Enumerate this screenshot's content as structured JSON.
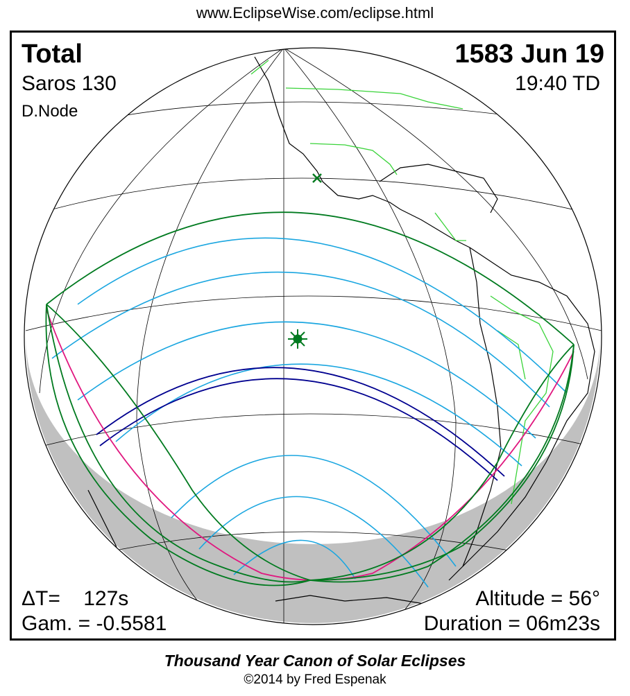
{
  "header": {
    "url": "www.EclipseWise.com/eclipse.html"
  },
  "eclipse": {
    "type": "Total",
    "date": "1583 Jun 19",
    "saros": "Saros 130",
    "time": "19:40 TD",
    "node": "D.Node",
    "delta_t": "ΔT=    127s",
    "gamma": "Gam. = -0.5581",
    "altitude": "Altitude = 56°",
    "duration": "Duration = 06m23s",
    "greatest_eclipse_marker": "star",
    "subsolar_marker": "x"
  },
  "footer": {
    "canon": "Thousand Year Canon of Solar Eclipses",
    "copyright": "©2014 by Fred Espenak"
  },
  "colors": {
    "penumbra_limits": "#007a1f",
    "contour_lines": "#1aa6e0",
    "umbra_path": "#00008f",
    "rise_set_curve": "#e0177f",
    "borders": "#39d339",
    "coastline": "#000000",
    "graticule": "#000000",
    "night_shading": "#c0c0c0"
  }
}
